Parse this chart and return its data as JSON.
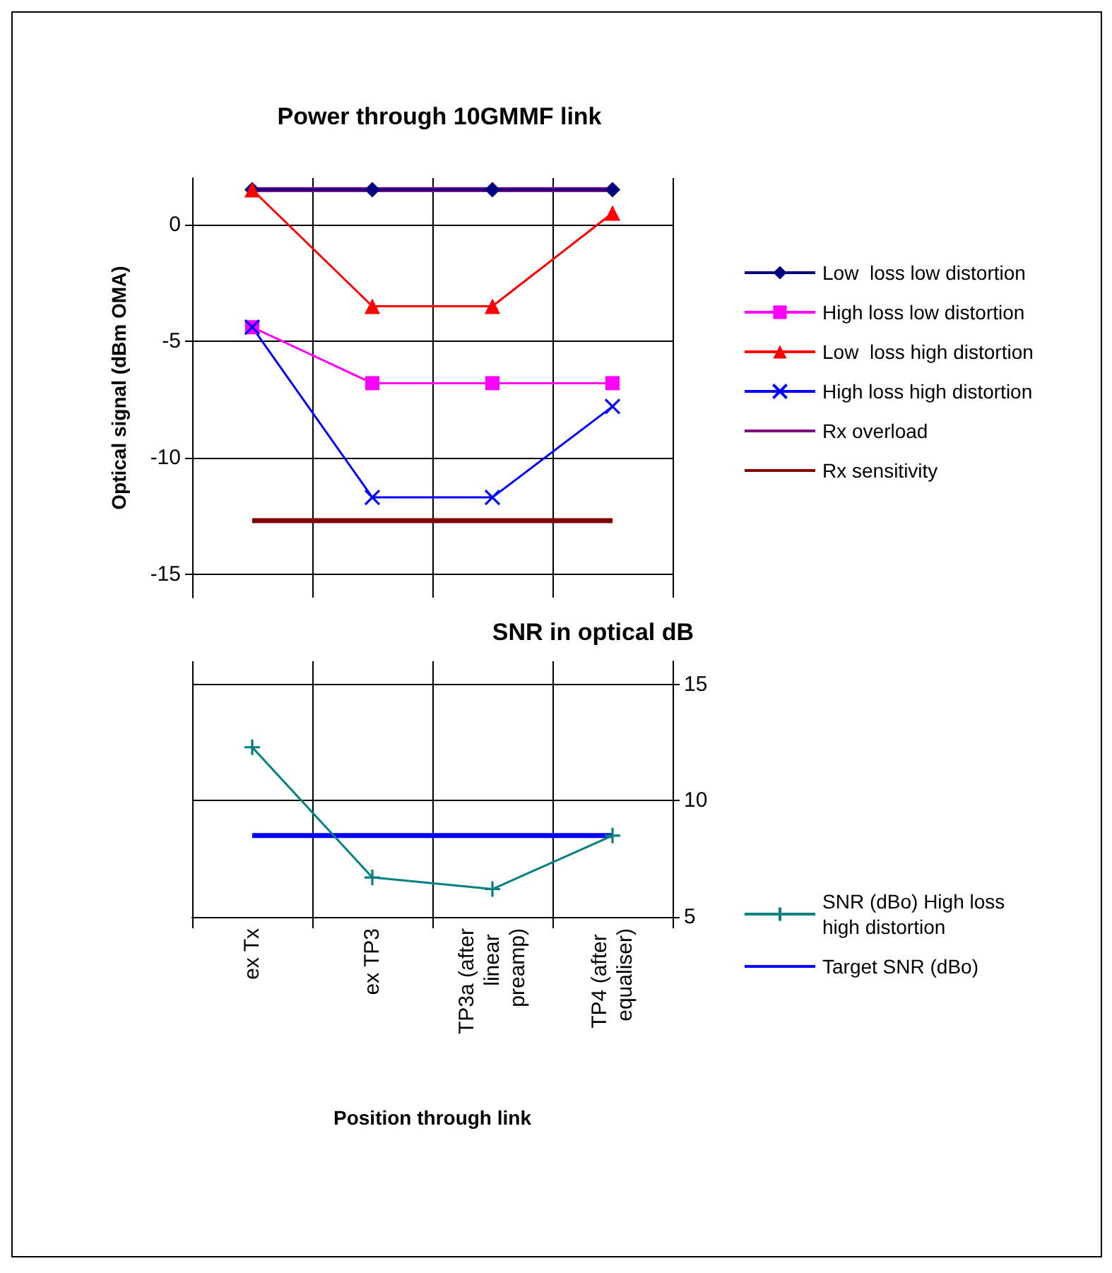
{
  "chart_data": [
    {
      "type": "line",
      "title": "Power through 10GMMF link",
      "ylabel": "Optical signal (dBm OMA)",
      "categories": [
        "ex Tx",
        "ex TP3",
        "TP3a (after linear preamp)",
        "TP4 (after equaliser)"
      ],
      "ylim": [
        -16,
        2
      ],
      "yticks": [
        -15,
        -10,
        -5,
        0
      ],
      "grid": true,
      "legend": "right",
      "tick_labels": "y",
      "series": [
        {
          "name": "Low  loss low distortion",
          "color": "#000080",
          "marker": "diamond",
          "values": [
            1.5,
            1.5,
            1.5,
            1.5
          ]
        },
        {
          "name": "High loss low distortion",
          "color": "#ff00ff",
          "marker": "square",
          "values": [
            -4.4,
            -6.8,
            -6.8,
            -6.8
          ]
        },
        {
          "name": "Low  loss high distortion",
          "color": "#ff0000",
          "marker": "triangle",
          "values": [
            1.5,
            -3.5,
            -3.5,
            0.5
          ]
        },
        {
          "name": "High loss high distortion",
          "color": "#0000ff",
          "marker": "cross",
          "values": [
            -4.4,
            -11.7,
            -11.7,
            -7.8
          ]
        },
        {
          "name": "Rx overload",
          "color": "#800080",
          "marker": "none",
          "values": [
            1.5,
            1.5,
            1.5,
            1.5
          ]
        },
        {
          "name": "Rx sensitivity",
          "color": "#800000",
          "marker": "none",
          "values": [
            -12.7,
            -12.7,
            -12.7,
            -12.7
          ]
        }
      ]
    },
    {
      "type": "line",
      "title": "SNR in optical dB",
      "xlabel": "Position through link",
      "categories": [
        "ex Tx",
        "ex TP3",
        "TP3a (after linear preamp)",
        "TP4 (after equaliser)"
      ],
      "y2lim": [
        5,
        16
      ],
      "y2ticks": [
        5,
        10,
        15
      ],
      "grid": true,
      "legend": "right",
      "series": [
        {
          "name": "SNR (dBo) High loss high distortion",
          "color": "#008080",
          "marker": "plus",
          "axis": "y2",
          "values": [
            12.3,
            6.7,
            6.2,
            8.5
          ]
        },
        {
          "name": "Target SNR (dBo)",
          "color": "#0000ff",
          "marker": "none",
          "axis": "y2",
          "values": [
            8.5,
            8.5,
            8.5,
            8.5
          ]
        }
      ]
    }
  ]
}
